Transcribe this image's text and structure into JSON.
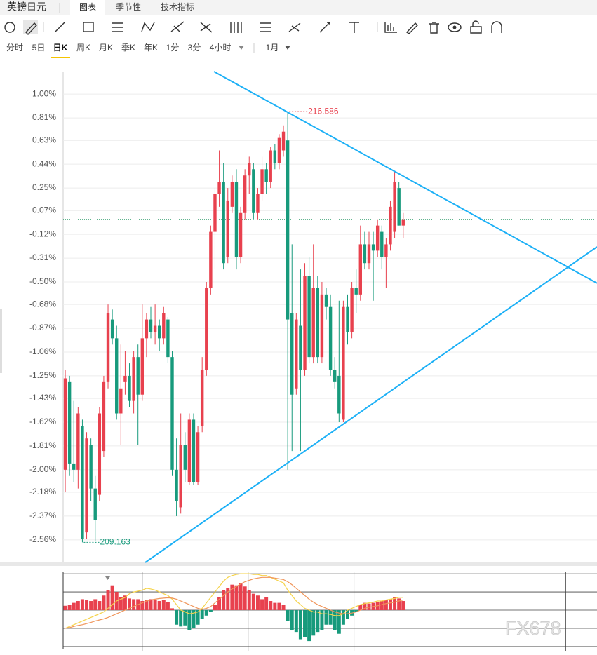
{
  "header": {
    "title": "英镑日元",
    "tabs": [
      "图表",
      "季节性",
      "技术指标"
    ],
    "active_tab": 0
  },
  "periods": {
    "items": [
      "分时",
      "5日",
      "日K",
      "周K",
      "月K",
      "季K",
      "年K",
      "1分",
      "3分",
      "4小时"
    ],
    "active": 2,
    "range": "1月"
  },
  "chart_data": {
    "type": "candlestick",
    "candles": [
      [
        -2.0,
        -1.2,
        -2.18,
        -1.27
      ],
      [
        -1.3,
        -1.25,
        -2.05,
        -1.95
      ],
      [
        -1.95,
        -1.45,
        -2.1,
        -2.0
      ],
      [
        -2.0,
        -1.5,
        -2.15,
        -1.55
      ],
      [
        -1.65,
        -1.6,
        -2.58,
        -2.55
      ],
      [
        -2.5,
        -1.7,
        -2.55,
        -1.75
      ],
      [
        -1.8,
        -1.75,
        -2.25,
        -2.15
      ],
      [
        -2.15,
        -2.05,
        -2.57,
        -2.4
      ],
      [
        -2.2,
        -1.5,
        -2.25,
        -1.55
      ],
      [
        -1.85,
        -1.25,
        -1.9,
        -1.3
      ],
      [
        -1.3,
        -0.68,
        -1.35,
        -0.75
      ],
      [
        -0.8,
        -0.72,
        -1.0,
        -0.95
      ],
      [
        -0.95,
        -0.85,
        -1.6,
        -1.55
      ],
      [
        -1.55,
        -1.0,
        -1.8,
        -1.35
      ],
      [
        -1.3,
        -1.05,
        -1.4,
        -1.25
      ],
      [
        -1.25,
        -1.15,
        -1.5,
        -1.45
      ],
      [
        -1.45,
        -1.05,
        -1.55,
        -1.1
      ],
      [
        -1.1,
        -1.0,
        -1.8,
        -1.4
      ],
      [
        -1.4,
        -0.68,
        -1.45,
        -0.95
      ],
      [
        -0.95,
        -0.75,
        -1.1,
        -0.8
      ],
      [
        -0.8,
        -0.7,
        -0.95,
        -0.9
      ],
      [
        -0.9,
        -0.68,
        -1.0,
        -0.85
      ],
      [
        -0.85,
        -0.8,
        -1.05,
        -0.95
      ],
      [
        -0.95,
        -0.7,
        -1.0,
        -0.75
      ],
      [
        -0.8,
        -0.78,
        -1.15,
        -1.1
      ],
      [
        -1.1,
        -1.05,
        -2.05,
        -2.0
      ],
      [
        -2.0,
        -1.75,
        -2.37,
        -2.25
      ],
      [
        -2.3,
        -1.55,
        -2.35,
        -1.8
      ],
      [
        -1.8,
        -1.7,
        -2.1,
        -2.0
      ],
      [
        -2.1,
        -1.55,
        -2.12,
        -1.6
      ],
      [
        -1.6,
        -1.55,
        -2.12,
        -2.1
      ],
      [
        -2.1,
        -1.65,
        -2.12,
        -1.7
      ],
      [
        -1.65,
        -1.1,
        -1.7,
        -1.2
      ],
      [
        -1.2,
        -0.5,
        -1.25,
        -0.55
      ],
      [
        -0.55,
        -0.05,
        -0.6,
        -0.1
      ],
      [
        -0.1,
        0.25,
        -0.4,
        0.2
      ],
      [
        0.2,
        0.55,
        0.1,
        0.3
      ],
      [
        0.3,
        0.45,
        -0.4,
        -0.35
      ],
      [
        -0.3,
        0.25,
        -0.35,
        0.15
      ],
      [
        0.1,
        0.35,
        0.05,
        0.3
      ],
      [
        0.3,
        0.4,
        -0.4,
        -0.3
      ],
      [
        -0.3,
        0.1,
        -0.35,
        0.05
      ],
      [
        0.05,
        0.4,
        0.0,
        0.35
      ],
      [
        0.35,
        0.5,
        0.2,
        0.45
      ],
      [
        0.4,
        0.45,
        0.0,
        0.05
      ],
      [
        0.05,
        0.25,
        0.0,
        0.2
      ],
      [
        0.2,
        0.5,
        0.15,
        0.4
      ],
      [
        0.4,
        0.45,
        0.2,
        0.3
      ],
      [
        0.3,
        0.58,
        0.25,
        0.55
      ],
      [
        0.55,
        0.6,
        0.4,
        0.45
      ],
      [
        0.45,
        0.68,
        0.4,
        0.65
      ],
      [
        0.55,
        0.75,
        0.5,
        0.7
      ],
      [
        0.63,
        0.86,
        -2.0,
        -0.8
      ],
      [
        -0.75,
        -0.2,
        -1.85,
        -1.4
      ],
      [
        -1.35,
        -0.75,
        -1.4,
        -0.8
      ],
      [
        -0.85,
        -0.4,
        -1.85,
        -1.2
      ],
      [
        -1.2,
        -0.35,
        -1.25,
        -0.45
      ],
      [
        -0.45,
        -0.3,
        -1.15,
        -1.1
      ],
      [
        -1.1,
        -0.2,
        -1.15,
        -0.55
      ],
      [
        -0.55,
        -0.45,
        -1.15,
        -1.1
      ],
      [
        -1.1,
        -0.5,
        -1.15,
        -0.6
      ],
      [
        -0.6,
        -0.55,
        -0.8,
        -0.7
      ],
      [
        -0.7,
        -0.6,
        -1.25,
        -1.2
      ],
      [
        -1.2,
        -1.1,
        -1.35,
        -1.3
      ],
      [
        -1.25,
        -0.65,
        -1.62,
        -1.55
      ],
      [
        -1.6,
        -0.65,
        -1.62,
        -0.7
      ],
      [
        -0.7,
        -0.6,
        -1.0,
        -0.9
      ],
      [
        -0.9,
        -0.5,
        -0.95,
        -0.55
      ],
      [
        -0.55,
        -0.4,
        -0.75,
        -0.6
      ],
      [
        -0.6,
        -0.05,
        -0.65,
        -0.2
      ],
      [
        -0.2,
        -0.1,
        -0.4,
        -0.35
      ],
      [
        -0.35,
        -0.1,
        -0.4,
        -0.2
      ],
      [
        -0.2,
        -0.1,
        -0.65,
        -0.25
      ],
      [
        -0.25,
        0.0,
        -0.3,
        -0.05
      ],
      [
        -0.1,
        -0.05,
        -0.4,
        -0.3
      ],
      [
        -0.3,
        -0.15,
        -0.55,
        -0.2
      ],
      [
        -0.2,
        0.15,
        -0.25,
        0.1
      ],
      [
        -0.1,
        0.38,
        -0.15,
        0.3
      ],
      [
        0.25,
        0.3,
        -0.05,
        -0.05
      ],
      [
        -0.05,
        0.05,
        -0.15,
        0.0
      ]
    ],
    "up_color": "#e8414e",
    "down_color": "#179a7c",
    "xlim": [
      -0.5,
      124.3
    ],
    "ylim": [
      -2.74,
      1.18
    ],
    "yticks": [
      {
        "value": 1.0,
        "label": "1.00%"
      },
      {
        "value": 0.81,
        "label": "0.81%"
      },
      {
        "value": 0.63,
        "label": "0.63%"
      },
      {
        "value": 0.44,
        "label": "0.44%"
      },
      {
        "value": 0.25,
        "label": "0.25%"
      },
      {
        "value": 0.07,
        "label": "0.07%"
      },
      {
        "value": -0.12,
        "label": "-0.12%"
      },
      {
        "value": -0.31,
        "label": "-0.31%"
      },
      {
        "value": -0.5,
        "label": "-0.50%"
      },
      {
        "value": -0.68,
        "label": "-0.68%"
      },
      {
        "value": -0.87,
        "label": "-0.87%"
      },
      {
        "value": -1.06,
        "label": "-1.06%"
      },
      {
        "value": -1.25,
        "label": "-1.25%"
      },
      {
        "value": -1.43,
        "label": "-1.43%"
      },
      {
        "value": -1.62,
        "label": "-1.62%"
      },
      {
        "value": -1.81,
        "label": "-1.81%"
      },
      {
        "value": -2.0,
        "label": "-2.00%"
      },
      {
        "value": -2.18,
        "label": "-2.18%"
      },
      {
        "value": -2.37,
        "label": "-2.37%"
      },
      {
        "value": -2.56,
        "label": "-2.56%"
      }
    ],
    "grid": true,
    "max_price": 216.586,
    "min_price": 209.163,
    "last_value": 0.0,
    "trendline_color": "#1cb0f6",
    "trendlines": [
      {
        "x": [
          34.75,
          124.3
        ],
        "y": [
          1.18,
          -0.51
        ]
      },
      {
        "x": [
          18.7,
          124.3
        ],
        "y": [
          -2.74,
          -0.22
        ]
      }
    ],
    "indicator": {
      "type": "macd",
      "ylim": [
        -1.06,
        1.06
      ],
      "yticks": [
        -1,
        -0.5,
        0,
        0.5,
        1
      ],
      "xticks": [
        18,
        42.75,
        67.5,
        92.25,
        117
      ],
      "dif_color": "#f5d34a",
      "dea_color": "#f0955a",
      "histogram": [
        0.12,
        0.15,
        0.2,
        0.25,
        0.3,
        0.28,
        0.25,
        0.3,
        0.25,
        0.4,
        0.55,
        0.68,
        0.5,
        0.35,
        0.4,
        0.32,
        0.3,
        0.3,
        0.25,
        0.28,
        0.3,
        0.28,
        0.25,
        0.28,
        0.22,
        0.05,
        -0.4,
        -0.45,
        -0.42,
        -0.55,
        -0.5,
        -0.4,
        -0.25,
        -0.15,
        -0.05,
        0.15,
        0.35,
        0.55,
        0.6,
        0.7,
        0.68,
        0.75,
        0.65,
        0.55,
        0.45,
        0.4,
        0.3,
        0.35,
        0.25,
        0.2,
        0.2,
        0.15,
        -0.3,
        -0.55,
        -0.6,
        -0.8,
        -0.75,
        -0.85,
        -0.7,
        -0.6,
        -0.55,
        -0.4,
        -0.4,
        -0.55,
        -0.65,
        -0.4,
        -0.25,
        -0.15,
        -0.05,
        0.15,
        0.2,
        0.18,
        0.2,
        0.22,
        0.25,
        0.28,
        0.3,
        0.35,
        0.32,
        0.25
      ],
      "dif": [
        -0.5,
        -0.45,
        -0.4,
        -0.35,
        -0.3,
        -0.25,
        -0.2,
        -0.15,
        -0.1,
        -0.05,
        0.05,
        0.15,
        0.25,
        0.3,
        0.35,
        0.45,
        0.5,
        0.52,
        0.55,
        0.6,
        0.58,
        0.55,
        0.5,
        0.45,
        0.4,
        0.3,
        0.15,
        0.0,
        -0.05,
        -0.1,
        -0.08,
        -0.05,
        0.05,
        0.2,
        0.35,
        0.5,
        0.65,
        0.8,
        0.9,
        0.95,
        0.98,
        1.0,
        1.0,
        1.0,
        0.98,
        0.98,
        0.95,
        0.95,
        0.9,
        0.85,
        0.8,
        0.75,
        0.55,
        0.4,
        0.25,
        0.15,
        0.05,
        0.0,
        -0.05,
        -0.05,
        -0.1,
        -0.1,
        -0.12,
        -0.15,
        -0.15,
        -0.1,
        0.0,
        0.05,
        0.1,
        0.15,
        0.18,
        0.2,
        0.22,
        0.25,
        0.25,
        0.28,
        0.3,
        0.32,
        0.35,
        0.35
      ],
      "dea": [
        -0.5,
        -0.48,
        -0.45,
        -0.42,
        -0.4,
        -0.37,
        -0.34,
        -0.3,
        -0.27,
        -0.24,
        -0.2,
        -0.15,
        -0.1,
        -0.05,
        0.0,
        0.05,
        0.1,
        0.15,
        0.2,
        0.25,
        0.28,
        0.3,
        0.32,
        0.33,
        0.34,
        0.33,
        0.3,
        0.25,
        0.2,
        0.15,
        0.1,
        0.05,
        0.02,
        0.05,
        0.1,
        0.2,
        0.3,
        0.4,
        0.5,
        0.58,
        0.65,
        0.72,
        0.78,
        0.82,
        0.86,
        0.88,
        0.9,
        0.9,
        0.9,
        0.88,
        0.86,
        0.84,
        0.78,
        0.7,
        0.6,
        0.5,
        0.4,
        0.3,
        0.22,
        0.15,
        0.1,
        0.05,
        0.0,
        -0.05,
        -0.08,
        -0.1,
        -0.1,
        -0.08,
        -0.05,
        0.0,
        0.05,
        0.08,
        0.1,
        0.12,
        0.15,
        0.18,
        0.2,
        0.22,
        0.25,
        0.28
      ]
    }
  },
  "watermark": "FX678"
}
